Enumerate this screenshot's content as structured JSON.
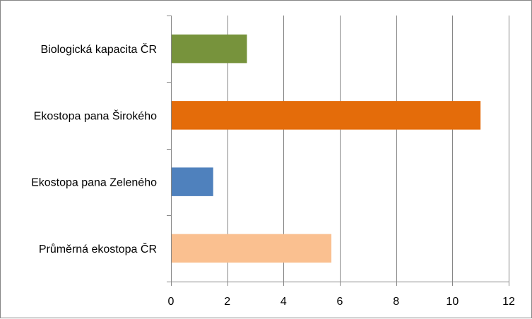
{
  "chart_data": {
    "type": "bar",
    "orientation": "horizontal",
    "categories": [
      "Biologická kapacita ČR",
      "Ekostopa pana Širokého",
      "Ekostopa pana Zeleného",
      "Průměrná ekostopa ČR"
    ],
    "values": [
      2.7,
      11.0,
      1.5,
      5.7
    ],
    "bar_colors": [
      "#77933C",
      "#E46C0A",
      "#4F81BD",
      "#FAC090"
    ],
    "xlim": [
      0,
      12
    ],
    "x_ticks": [
      "0",
      "2",
      "4",
      "6",
      "8",
      "10",
      "12"
    ],
    "title": "",
    "xlabel": "",
    "ylabel": "",
    "grid": "vertical",
    "legend": "none"
  }
}
